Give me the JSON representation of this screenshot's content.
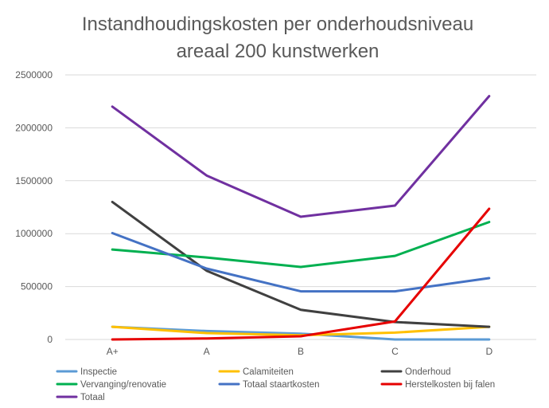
{
  "chart_data": {
    "type": "line",
    "title_line1": "Instandhoudingskosten per onderhoudsniveau",
    "title_line2": "areaal 200 kunstwerken",
    "xlabel": "",
    "ylabel": "",
    "categories": [
      "A+",
      "A",
      "B",
      "C",
      "D"
    ],
    "ylim": [
      0,
      2500000
    ],
    "yticks": [
      0,
      500000,
      1000000,
      1500000,
      2000000,
      2500000
    ],
    "ytick_labels": [
      "0",
      "500000",
      "1000000",
      "1500000",
      "2000000",
      "2500000"
    ],
    "grid": true,
    "legend_position": "bottom",
    "series": [
      {
        "name": "Inspectie",
        "color": "#5b9bd5",
        "values": [
          120000,
          80000,
          55000,
          0,
          0
        ]
      },
      {
        "name": "Calamiteiten",
        "color": "#ffc000",
        "values": [
          120000,
          60000,
          40000,
          65000,
          120000
        ]
      },
      {
        "name": "Onderhoud",
        "color": "#404040",
        "values": [
          1300000,
          650000,
          280000,
          165000,
          120000
        ]
      },
      {
        "name": "Vervanging/renovatie",
        "color": "#00b050",
        "values": [
          850000,
          775000,
          685000,
          790000,
          1110000
        ]
      },
      {
        "name": "Totaal staartkosten",
        "color": "#4472c4",
        "values": [
          1005000,
          670000,
          455000,
          455000,
          580000
        ]
      },
      {
        "name": "Herstelkosten bij falen",
        "color": "#e60000",
        "values": [
          0,
          10000,
          30000,
          170000,
          1235000
        ]
      },
      {
        "name": "Totaal",
        "color": "#7030a0",
        "values": [
          2200000,
          1550000,
          1160000,
          1265000,
          2300000
        ]
      }
    ]
  }
}
